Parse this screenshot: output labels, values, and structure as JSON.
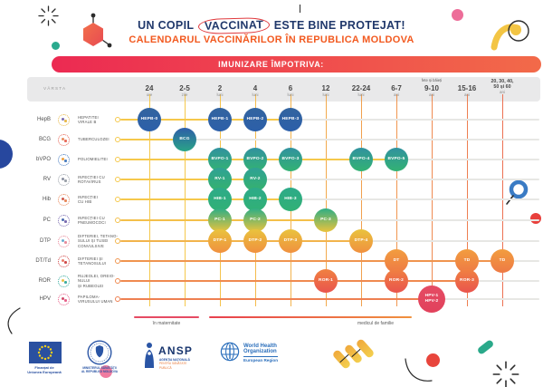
{
  "colors": {
    "title": "#20386b",
    "subtitle": "#f2591f",
    "banner_from": "#ec2a52",
    "banner_to": "#f26a49",
    "header_band": "#e9e9ea",
    "grid_gray_line": "#e7e7e4",
    "yellow_line": "#f5c84b",
    "orange_line": "#f0954f"
  },
  "title": {
    "part1": "UN COPIL",
    "highlight": "VACCINAT",
    "part2": "ESTE BINE PROTEJAT!"
  },
  "subtitle": "CALENDARUL VACCINĂRILOR ÎN REPUBLICA MOLDOVA",
  "banner": "IMUNIZARE ÎMPOTRIVA:",
  "table": {
    "age_header": "VÂRSTA",
    "columns": [
      {
        "value": "24",
        "unit": "ore",
        "line_color": "#f5c84b"
      },
      {
        "value": "2-5",
        "unit": "zile",
        "line_color": "#f5c84b"
      },
      {
        "value": "2",
        "unit": "luni",
        "line_color": "#f5c24b"
      },
      {
        "value": "4",
        "unit": "luni",
        "line_color": "#f4bb4b"
      },
      {
        "value": "6",
        "unit": "luni",
        "line_color": "#f3b34c"
      },
      {
        "value": "12",
        "unit": "luni",
        "line_color": "#f2aa4d"
      },
      {
        "value": "22-24",
        "unit": "luni",
        "line_color": "#f1a04e"
      },
      {
        "value": "6-7",
        "unit": "ani",
        "line_color": "#f0954f"
      },
      {
        "prefix": "fete și băieți",
        "value": "9-10",
        "unit": "ani",
        "line_color": "#ef8a50"
      },
      {
        "value": "15-16",
        "unit": "ani",
        "line_color": "#ee7f51"
      },
      {
        "prefix": "20, 30, 40,",
        "value": "50 și 60",
        "unit": "ani",
        "small": true,
        "line_color": "#ec7152"
      }
    ],
    "rows": [
      {
        "code": "HepB",
        "disease": [
          "HEPATITEI",
          "VIRALE B"
        ],
        "line_color": "#f5c84b",
        "circle_from": "#33649f",
        "circle_to": "#2c5fa9",
        "icon_colors": [
          "#e8b94a",
          "#7a6bb0"
        ],
        "doses": [
          {
            "label": "HEPB-0",
            "col": 0
          },
          {
            "label": "HEPB-1",
            "col": 2
          },
          {
            "label": "HEPB-2",
            "col": 3
          },
          {
            "label": "HEPB-3",
            "col": 4
          }
        ]
      },
      {
        "code": "BCG",
        "disease": [
          "TUBERCULOZEI"
        ],
        "line_color": "#f5c84b",
        "circle_from": "#2e5ea8",
        "circle_to": "#2aa487",
        "icon_colors": [
          "#e86a5a",
          "#e88a5a"
        ],
        "doses": [
          {
            "label": "BCG",
            "col": 1
          }
        ]
      },
      {
        "code": "bVPO",
        "disease": [
          "POLIOMIELITEI"
        ],
        "line_color": "#f5c84b",
        "circle_from": "#31929f",
        "circle_to": "#33b273",
        "icon_colors": [
          "#4a7ec0",
          "#f0a03c"
        ],
        "doses": [
          {
            "label": "BVPO-1",
            "col": 2
          },
          {
            "label": "BVPO-2",
            "col": 3
          },
          {
            "label": "BVPO-3",
            "col": 4
          },
          {
            "label": "BVPO-4",
            "col": 6
          },
          {
            "label": "BVPO-5",
            "col": 7
          }
        ]
      },
      {
        "code": "RV",
        "disease": [
          "INFECȚIEI CU",
          "ROTAVIRUS"
        ],
        "line_color": "#f5c84b",
        "circle_from": "#2fa195",
        "circle_to": "#35b26d",
        "icon_colors": [
          "#9aa0a8",
          "#8a90a0"
        ],
        "doses": [
          {
            "label": "RV-1",
            "col": 2
          },
          {
            "label": "RV-2",
            "col": 3
          }
        ]
      },
      {
        "code": "Hib",
        "disease": [
          "INFECȚIEI",
          "CU HIB"
        ],
        "line_color": "#f5c84b",
        "circle_from": "#2daa89",
        "circle_to": "#31b175",
        "icon_colors": [
          "#e8875a",
          "#d05a4a"
        ],
        "doses": [
          {
            "label": "HIB-1",
            "col": 2
          },
          {
            "label": "HIB-2",
            "col": 3
          },
          {
            "label": "HIB-3",
            "col": 4
          }
        ]
      },
      {
        "code": "PC",
        "disease": [
          "INFECȚIEI CU",
          "PNEUMOCOCI"
        ],
        "line_color": "#f4c04b",
        "circle_from": "#2fae85",
        "circle_to": "#eac33c",
        "icon_colors": [
          "#7a6bb0",
          "#4a6ab0"
        ],
        "doses": [
          {
            "label": "PC-1",
            "col": 2
          },
          {
            "label": "PC-2",
            "col": 3
          },
          {
            "label": "PC-3",
            "col": 5
          }
        ]
      },
      {
        "code": "DTP",
        "disease": [
          "DIFTERIEI, TETANO-",
          "SULUI ȘI TUSEI",
          "CONVULSIVE"
        ],
        "line_color": "#f2b44c",
        "circle_from": "#e9c33e",
        "circle_to": "#f0903f",
        "icon_colors": [
          "#e88a9a",
          "#6aaed0"
        ],
        "doses": [
          {
            "label": "DTP-1",
            "col": 2
          },
          {
            "label": "DTP-2",
            "col": 3
          },
          {
            "label": "DTP-3",
            "col": 4
          },
          {
            "label": "DTP-4",
            "col": 6
          }
        ]
      },
      {
        "code": "DT/Td",
        "disease": [
          "DIFTERIEI ȘI",
          "TETANOSULUI"
        ],
        "line_color": "#f0954f",
        "circle_from": "#f29d3f",
        "circle_to": "#ee7a45",
        "icon_colors": [
          "#d04a4a",
          "#e87a6a"
        ],
        "doses": [
          {
            "label": "DT",
            "col": 7
          },
          {
            "label": "TD",
            "col": 9
          },
          {
            "label": "TD",
            "col": 10
          }
        ]
      },
      {
        "code": "ROR",
        "disease": [
          "RUJEOLEI, OREIO-",
          "NULUI",
          "ȘI RUBEOLEI"
        ],
        "line_color": "#ef8a50",
        "circle_from": "#f08141",
        "circle_to": "#e9544d",
        "icon_colors": [
          "#3aada0",
          "#e8c04a"
        ],
        "doses": [
          {
            "label": "ROR-1",
            "col": 5
          },
          {
            "label": "ROR-2",
            "col": 7
          },
          {
            "label": "ROR-3",
            "col": 9
          }
        ]
      },
      {
        "code": "HPV",
        "disease": [
          "PAPILOMA-",
          "VIRUSULUI UMAN"
        ],
        "line_color": "#ee8051",
        "circle_from": "#e44c64",
        "circle_to": "#e2415c",
        "icon_colors": [
          "#e8608a",
          "#d04a6a"
        ],
        "doses": [
          {
            "label": "HPV-1|HPV-2",
            "col": 8,
            "big": true
          }
        ]
      }
    ]
  },
  "footer": {
    "maternity": "în maternitate",
    "family_doctor": "medicul de familie"
  },
  "logos": {
    "eu": {
      "lines": [
        "Finanțat de",
        "Uniunea Europeană"
      ]
    },
    "ministry": {
      "lines": [
        "MINISTERUL SĂNĂTĂȚII",
        "AL REPUBLICII MOLDOVA"
      ]
    },
    "ansp": {
      "name": "ANSP",
      "lines": [
        "AGENȚIA NAȚIONALĂ",
        "PENTRU SĂNĂTATE PUBLICĂ"
      ]
    },
    "who": {
      "lines": [
        "World Health",
        "Organization"
      ],
      "region": "European Region"
    }
  },
  "icons": [
    "starburst-icon",
    "molecule-icon",
    "dot-icon",
    "swoosh-circle-icon",
    "semicircle-icon",
    "curve-icon",
    "magnifier-icon",
    "pill-icon",
    "pathogen-icon"
  ]
}
